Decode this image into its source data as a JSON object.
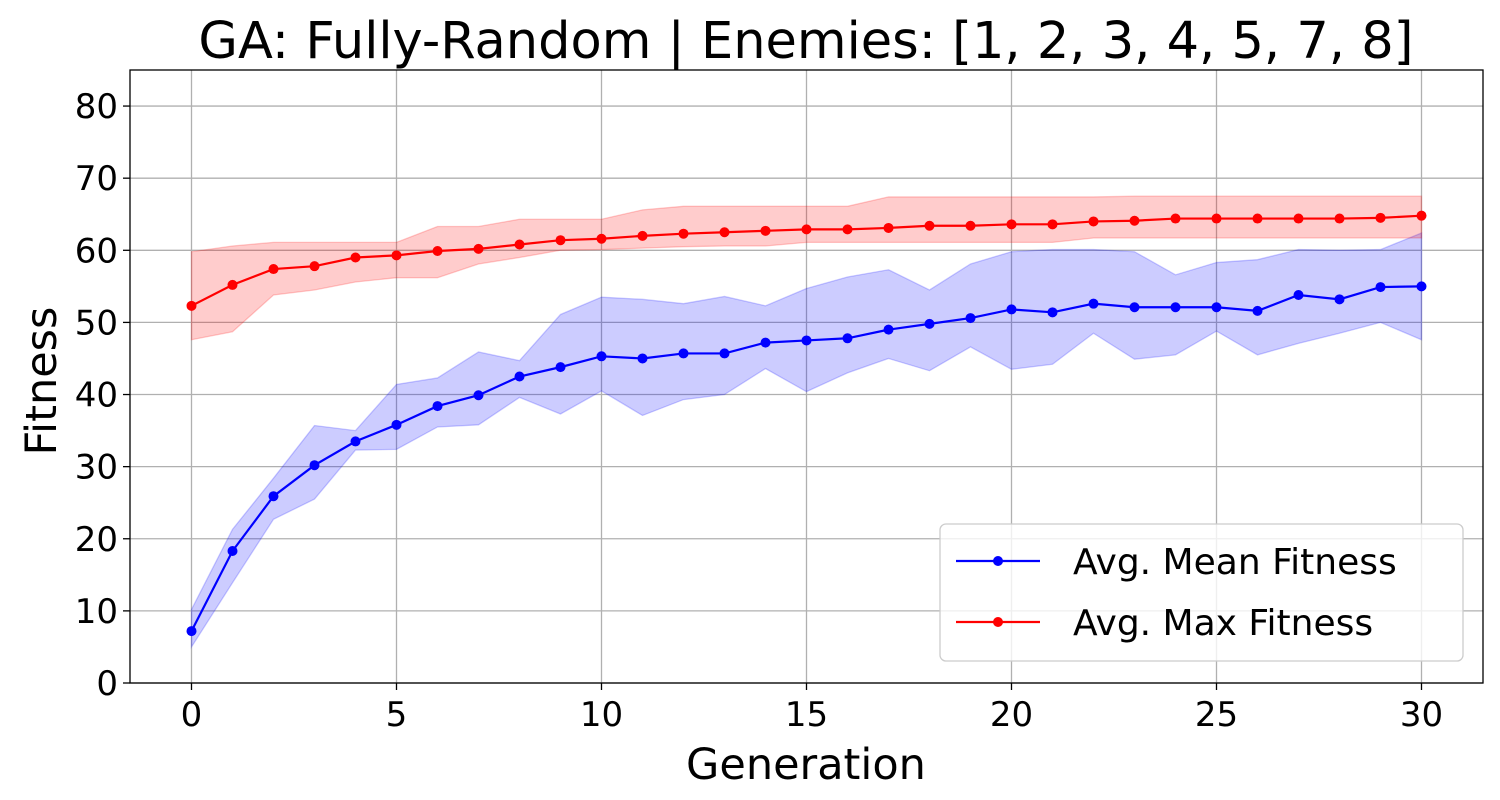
{
  "chart_data": {
    "type": "line",
    "title": "GA: Fully-Random | Enemies: [1, 2, 3, 4, 5, 7, 8]",
    "xlabel": "Generation",
    "ylabel": "Fitness",
    "xlim": [
      -1.5,
      31.5
    ],
    "ylim": [
      0,
      85
    ],
    "xticks": [
      0,
      5,
      10,
      15,
      20,
      25,
      30
    ],
    "yticks": [
      0,
      10,
      20,
      30,
      40,
      50,
      60,
      70,
      80
    ],
    "grid": true,
    "legend_position": "bottom-right",
    "x": [
      0,
      1,
      2,
      3,
      4,
      5,
      6,
      7,
      8,
      9,
      10,
      11,
      12,
      13,
      14,
      15,
      16,
      17,
      18,
      19,
      20,
      21,
      22,
      23,
      24,
      25,
      26,
      27,
      28,
      29,
      30
    ],
    "series": [
      {
        "name": "Avg. Mean Fitness",
        "color": "#0000ff",
        "band_color": "#0000ff",
        "values": [
          7.2,
          18.3,
          25.9,
          30.2,
          33.5,
          35.8,
          38.4,
          39.9,
          42.5,
          43.8,
          45.3,
          45.0,
          45.7,
          45.7,
          47.2,
          47.5,
          47.8,
          49.0,
          49.8,
          50.6,
          51.8,
          51.4,
          52.6,
          52.1,
          52.1,
          52.1,
          51.6,
          53.8,
          53.2,
          54.9,
          55.0
        ],
        "upper": [
          10.2,
          21.3,
          28.4,
          35.7,
          35.0,
          41.4,
          42.3,
          45.9,
          44.7,
          51.1,
          53.5,
          53.2,
          52.6,
          53.6,
          52.3,
          54.7,
          56.3,
          57.3,
          54.5,
          58.1,
          59.8,
          60.1,
          60.1,
          59.8,
          56.6,
          58.3,
          58.7,
          60.1,
          60.0,
          60.1,
          62.4
        ],
        "lower": [
          5.0,
          13.9,
          22.7,
          25.5,
          32.3,
          32.4,
          35.5,
          35.8,
          39.6,
          37.3,
          40.5,
          37.1,
          39.3,
          40.0,
          43.6,
          40.4,
          43.0,
          45.0,
          43.3,
          46.6,
          43.5,
          44.2,
          48.5,
          44.9,
          45.5,
          48.8,
          45.5,
          47.1,
          48.5,
          50.0,
          47.6
        ]
      },
      {
        "name": "Avg. Max Fitness",
        "color": "#ff0000",
        "band_color": "#ff0000",
        "values": [
          52.3,
          55.2,
          57.4,
          57.8,
          59.0,
          59.3,
          59.9,
          60.2,
          60.8,
          61.4,
          61.6,
          62.0,
          62.3,
          62.5,
          62.7,
          62.9,
          62.9,
          63.1,
          63.4,
          63.4,
          63.6,
          63.6,
          64.0,
          64.1,
          64.4,
          64.4,
          64.4,
          64.4,
          64.4,
          64.5,
          64.8
        ],
        "upper": [
          59.8,
          60.6,
          61.1,
          61.1,
          61.1,
          61.1,
          63.3,
          63.3,
          64.3,
          64.3,
          64.3,
          65.6,
          66.1,
          66.1,
          66.1,
          66.1,
          66.1,
          67.4,
          67.4,
          67.4,
          67.4,
          67.4,
          67.4,
          67.5,
          67.5,
          67.5,
          67.5,
          67.5,
          67.5,
          67.5,
          67.5
        ],
        "lower": [
          47.6,
          48.7,
          53.8,
          54.5,
          55.6,
          56.2,
          56.2,
          58.1,
          59.0,
          60.0,
          60.1,
          60.3,
          60.5,
          60.6,
          60.6,
          61.1,
          61.1,
          61.1,
          61.1,
          61.1,
          61.1,
          61.1,
          61.7,
          61.7,
          61.7,
          61.7,
          61.7,
          61.7,
          61.7,
          61.7,
          61.7
        ]
      }
    ]
  }
}
